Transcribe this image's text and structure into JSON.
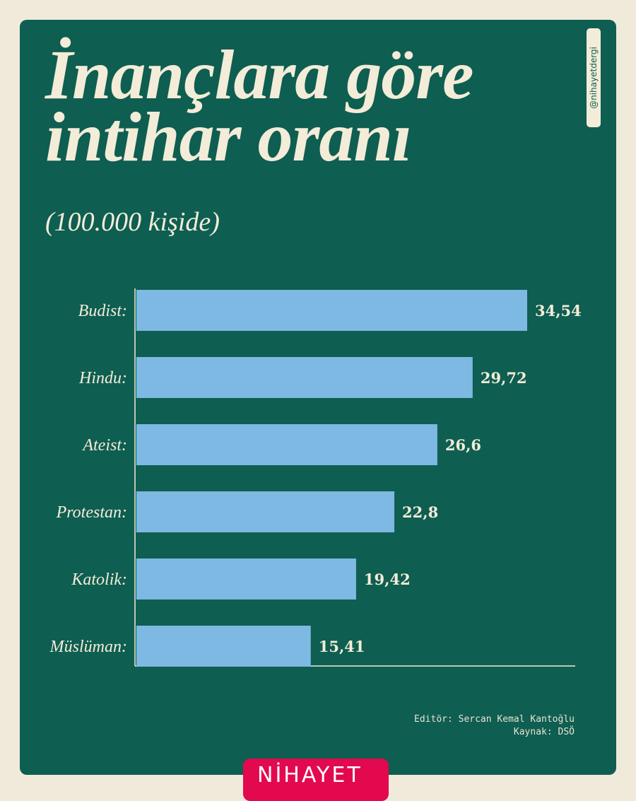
{
  "chart_data": {
    "type": "bar",
    "orientation": "horizontal",
    "title": "İnançlara göre intihar oranı",
    "title_lines": [
      "İnançlara göre",
      "intihar oranı"
    ],
    "subtitle": "(100.000 kişide)",
    "categories": [
      "Budist:",
      "Hindu:",
      "Ateist:",
      "Protestan:",
      "Katolik:",
      "Müslüman:"
    ],
    "values": [
      34.54,
      29.72,
      26.6,
      22.8,
      19.42,
      15.41
    ],
    "data_labels": [
      "34,54",
      "29,72",
      "26,6",
      "22,8",
      "19,42",
      "15,41"
    ],
    "xlim": [
      0,
      34.54
    ],
    "grid": false,
    "bar_color": "#7db9e2"
  },
  "handle": "@nihayetdergi",
  "footer": {
    "editor": "Editör: Sercan Kemal Kantoğlu",
    "source": "Kaynak: DSÖ"
  },
  "logo": "NİHAYET",
  "colors": {
    "background": "#f0eadb",
    "panel": "#0e5e51",
    "text": "#f3ecd8",
    "logo": "#e2094f"
  }
}
